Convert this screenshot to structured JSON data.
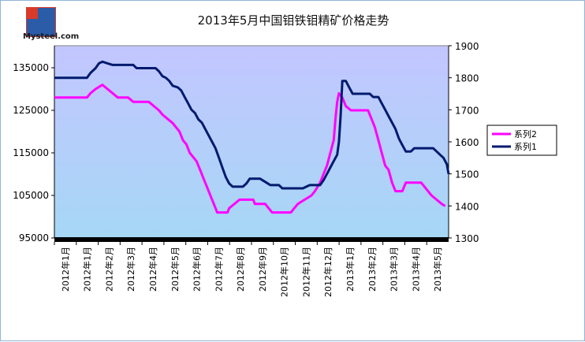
{
  "logo": {
    "brand": "Mysteel.com"
  },
  "chart_data": {
    "type": "line",
    "title": "2013年5月中国钼铁钼精矿价格走势",
    "x_categories": [
      "2012年1月",
      "2012年1月",
      "2012年2月",
      "2012年3月",
      "2012年4月",
      "2012年5月",
      "2012年6月",
      "2012年7月",
      "2012年8月",
      "2012年9月",
      "2012年10月",
      "2012年11月",
      "2012年12月",
      "2013年1月",
      "2013年2月",
      "2013年3月",
      "2013年4月",
      "2013年5月"
    ],
    "y_left": {
      "range": [
        95000,
        135000
      ],
      "ticks": [
        "135000",
        "125000",
        "115000",
        "105000",
        "95000"
      ]
    },
    "y_right": {
      "range": [
        1300,
        1900
      ],
      "ticks": [
        "1900",
        "1800",
        "1700",
        "1600",
        "1500",
        "1400",
        "1300"
      ]
    },
    "legend": {
      "position": "right",
      "items": [
        "系列2",
        "系列1"
      ]
    },
    "series": [
      {
        "name": "系列2",
        "axis": "left",
        "color": "#ff00ff",
        "points": [
          [
            0,
            128000
          ],
          [
            1.9,
            128000
          ],
          [
            2.1,
            129000
          ],
          [
            2.4,
            130000
          ],
          [
            2.8,
            131000
          ],
          [
            3.1,
            130000
          ],
          [
            3.4,
            129000
          ],
          [
            3.7,
            128000
          ],
          [
            4.3,
            128000
          ],
          [
            4.6,
            127000
          ],
          [
            5.5,
            127000
          ],
          [
            5.8,
            126000
          ],
          [
            6.1,
            125000
          ],
          [
            6.3,
            124000
          ],
          [
            6.6,
            123000
          ],
          [
            6.9,
            122000
          ],
          [
            7.1,
            121000
          ],
          [
            7.3,
            120000
          ],
          [
            7.5,
            118000
          ],
          [
            7.7,
            117000
          ],
          [
            7.9,
            115000
          ],
          [
            8.1,
            114000
          ],
          [
            8.3,
            113000
          ],
          [
            8.5,
            111000
          ],
          [
            8.7,
            109000
          ],
          [
            8.9,
            107000
          ],
          [
            9.1,
            105000
          ],
          [
            9.3,
            103000
          ],
          [
            9.5,
            101000
          ],
          [
            10.1,
            101000
          ],
          [
            10.2,
            102000
          ],
          [
            10.5,
            103000
          ],
          [
            10.8,
            104000
          ],
          [
            11.6,
            104000
          ],
          [
            11.7,
            103000
          ],
          [
            12.3,
            103000
          ],
          [
            12.5,
            102000
          ],
          [
            12.7,
            101000
          ],
          [
            13.8,
            101000
          ],
          [
            14.0,
            102000
          ],
          [
            14.2,
            103000
          ],
          [
            14.6,
            104000
          ],
          [
            15.0,
            105000
          ],
          [
            15.2,
            106000
          ],
          [
            15.5,
            108000
          ],
          [
            15.7,
            110000
          ],
          [
            15.9,
            112000
          ],
          [
            16.1,
            115000
          ],
          [
            16.3,
            118000
          ],
          [
            16.4,
            123000
          ],
          [
            16.5,
            127000
          ],
          [
            16.6,
            129000
          ],
          [
            16.8,
            128000
          ],
          [
            17.0,
            126000
          ],
          [
            17.3,
            125000
          ],
          [
            18.3,
            125000
          ],
          [
            18.5,
            123000
          ],
          [
            18.7,
            121000
          ],
          [
            18.9,
            118000
          ],
          [
            19.1,
            115000
          ],
          [
            19.3,
            112000
          ],
          [
            19.5,
            111000
          ],
          [
            19.7,
            108000
          ],
          [
            19.9,
            106000
          ],
          [
            20.3,
            106000
          ],
          [
            20.5,
            108000
          ],
          [
            21.4,
            108000
          ],
          [
            21.6,
            107000
          ],
          [
            21.8,
            106000
          ],
          [
            22.0,
            105000
          ],
          [
            22.3,
            104000
          ],
          [
            22.6,
            103000
          ],
          [
            22.8,
            102500
          ]
        ]
      },
      {
        "name": "系列1",
        "axis": "right",
        "color": "#001a6e",
        "points": [
          [
            0,
            1800
          ],
          [
            1.9,
            1800
          ],
          [
            2.1,
            1815
          ],
          [
            2.4,
            1830
          ],
          [
            2.6,
            1845
          ],
          [
            2.8,
            1850
          ],
          [
            3.1,
            1845
          ],
          [
            3.4,
            1840
          ],
          [
            4.6,
            1840
          ],
          [
            4.8,
            1830
          ],
          [
            5.9,
            1830
          ],
          [
            6.1,
            1820
          ],
          [
            6.3,
            1805
          ],
          [
            6.5,
            1800
          ],
          [
            6.7,
            1790
          ],
          [
            6.9,
            1775
          ],
          [
            7.2,
            1770
          ],
          [
            7.4,
            1760
          ],
          [
            7.6,
            1740
          ],
          [
            7.8,
            1720
          ],
          [
            8.0,
            1700
          ],
          [
            8.2,
            1690
          ],
          [
            8.4,
            1670
          ],
          [
            8.6,
            1660
          ],
          [
            8.8,
            1640
          ],
          [
            9.0,
            1620
          ],
          [
            9.2,
            1600
          ],
          [
            9.4,
            1580
          ],
          [
            9.6,
            1550
          ],
          [
            9.8,
            1520
          ],
          [
            10.0,
            1490
          ],
          [
            10.2,
            1470
          ],
          [
            10.4,
            1460
          ],
          [
            11.0,
            1460
          ],
          [
            11.2,
            1470
          ],
          [
            11.4,
            1485
          ],
          [
            12.0,
            1485
          ],
          [
            12.3,
            1475
          ],
          [
            12.6,
            1465
          ],
          [
            13.1,
            1465
          ],
          [
            13.3,
            1455
          ],
          [
            14.5,
            1455
          ],
          [
            14.7,
            1460
          ],
          [
            14.9,
            1465
          ],
          [
            15.5,
            1465
          ],
          [
            15.7,
            1480
          ],
          [
            15.9,
            1500
          ],
          [
            16.1,
            1520
          ],
          [
            16.3,
            1540
          ],
          [
            16.5,
            1560
          ],
          [
            16.6,
            1600
          ],
          [
            16.7,
            1680
          ],
          [
            16.8,
            1790
          ],
          [
            17.0,
            1790
          ],
          [
            17.2,
            1770
          ],
          [
            17.4,
            1750
          ],
          [
            18.4,
            1750
          ],
          [
            18.6,
            1740
          ],
          [
            18.9,
            1740
          ],
          [
            19.1,
            1720
          ],
          [
            19.3,
            1700
          ],
          [
            19.5,
            1680
          ],
          [
            19.7,
            1660
          ],
          [
            19.9,
            1640
          ],
          [
            20.1,
            1610
          ],
          [
            20.3,
            1590
          ],
          [
            20.5,
            1570
          ],
          [
            20.8,
            1570
          ],
          [
            21.0,
            1580
          ],
          [
            22.1,
            1580
          ],
          [
            22.3,
            1570
          ],
          [
            22.5,
            1560
          ],
          [
            22.7,
            1550
          ],
          [
            22.9,
            1530
          ],
          [
            23.0,
            1500
          ]
        ]
      }
    ]
  }
}
